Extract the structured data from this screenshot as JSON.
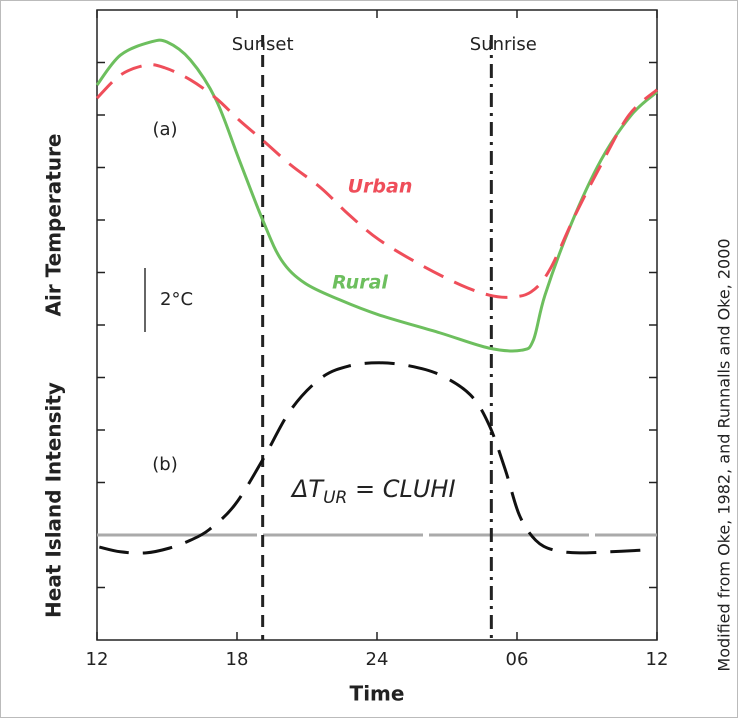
{
  "chart_data": {
    "type": "line",
    "xlabel": "Time",
    "ylabel_top": "Air Temperature",
    "ylabel_bottom": "Heat Island Intensity",
    "xlim": [
      0,
      24
    ],
    "xticks": [
      {
        "value": 0,
        "label": "12"
      },
      {
        "value": 6,
        "label": "18"
      },
      {
        "value": 12,
        "label": "24"
      },
      {
        "value": 18,
        "label": "06"
      },
      {
        "value": 24,
        "label": "12"
      }
    ],
    "ylim": [
      0,
      12
    ],
    "yticks": [
      1,
      2,
      3,
      4,
      5,
      6,
      7,
      8,
      9,
      10,
      11
    ],
    "y2lim": [
      -2,
      10
    ],
    "y2ticks": [
      0
    ],
    "series": [
      {
        "name": "Rural",
        "color": "#6dbf5e",
        "x": [
          0,
          1.0,
          2.3,
          3.0,
          4.0,
          5.1,
          6.1,
          7.1,
          7.9,
          8.9,
          10.4,
          12.1,
          14.7,
          16.8,
          18.2,
          18.7,
          19.2,
          20.3,
          21.6,
          22.9,
          24.0
        ],
        "values": [
          10.57,
          11.14,
          11.39,
          11.39,
          11.05,
          10.29,
          9.14,
          8.0,
          7.24,
          6.8,
          6.48,
          6.19,
          5.85,
          5.56,
          5.52,
          5.71,
          6.57,
          7.9,
          9.14,
          10.0,
          10.44
        ]
      },
      {
        "name": "Urban",
        "color": "#ef4e5a",
        "x": [
          0,
          1.0,
          2.1,
          2.9,
          4.0,
          5.1,
          6.1,
          7.1,
          8.3,
          9.6,
          10.8,
          12.1,
          13.9,
          15.6,
          16.8,
          17.7,
          18.6,
          19.4,
          20.5,
          21.6,
          22.8,
          24.0
        ],
        "values": [
          10.32,
          10.76,
          10.95,
          10.9,
          10.67,
          10.32,
          9.9,
          9.52,
          9.05,
          8.61,
          8.1,
          7.62,
          7.14,
          6.76,
          6.57,
          6.53,
          6.63,
          7.05,
          8.1,
          9.05,
          10.0,
          10.48
        ]
      },
      {
        "color": "#111111",
        "axis": "y2",
        "x": [
          0.1,
          1.0,
          2.1,
          3.1,
          4.0,
          4.8,
          5.9,
          7.1,
          8.3,
          9.6,
          10.8,
          12.1,
          13.4,
          14.7,
          16.0,
          16.8,
          17.5,
          18.1,
          18.8,
          19.6,
          20.7,
          22.0,
          23.3
        ],
        "values": [
          -0.23,
          -0.32,
          -0.34,
          -0.25,
          -0.1,
          0.1,
          0.57,
          1.43,
          2.38,
          2.99,
          3.22,
          3.28,
          3.22,
          3.05,
          2.67,
          2.1,
          1.24,
          0.38,
          -0.1,
          -0.29,
          -0.34,
          -0.32,
          -0.29
        ]
      }
    ],
    "markers": [
      {
        "label": "Sunset",
        "x": 7.1
      },
      {
        "label": "Sunrise",
        "x": 16.9
      }
    ],
    "annotations": {
      "panel_a": "(a)",
      "panel_b": "(b)",
      "scale": "2°C",
      "delta": "ΔT",
      "delta_sub": "UR",
      "delta_rest": " = CLUHI"
    },
    "source": "Modified from Oke, 1982, and Runnalls and Oke, 2000"
  }
}
